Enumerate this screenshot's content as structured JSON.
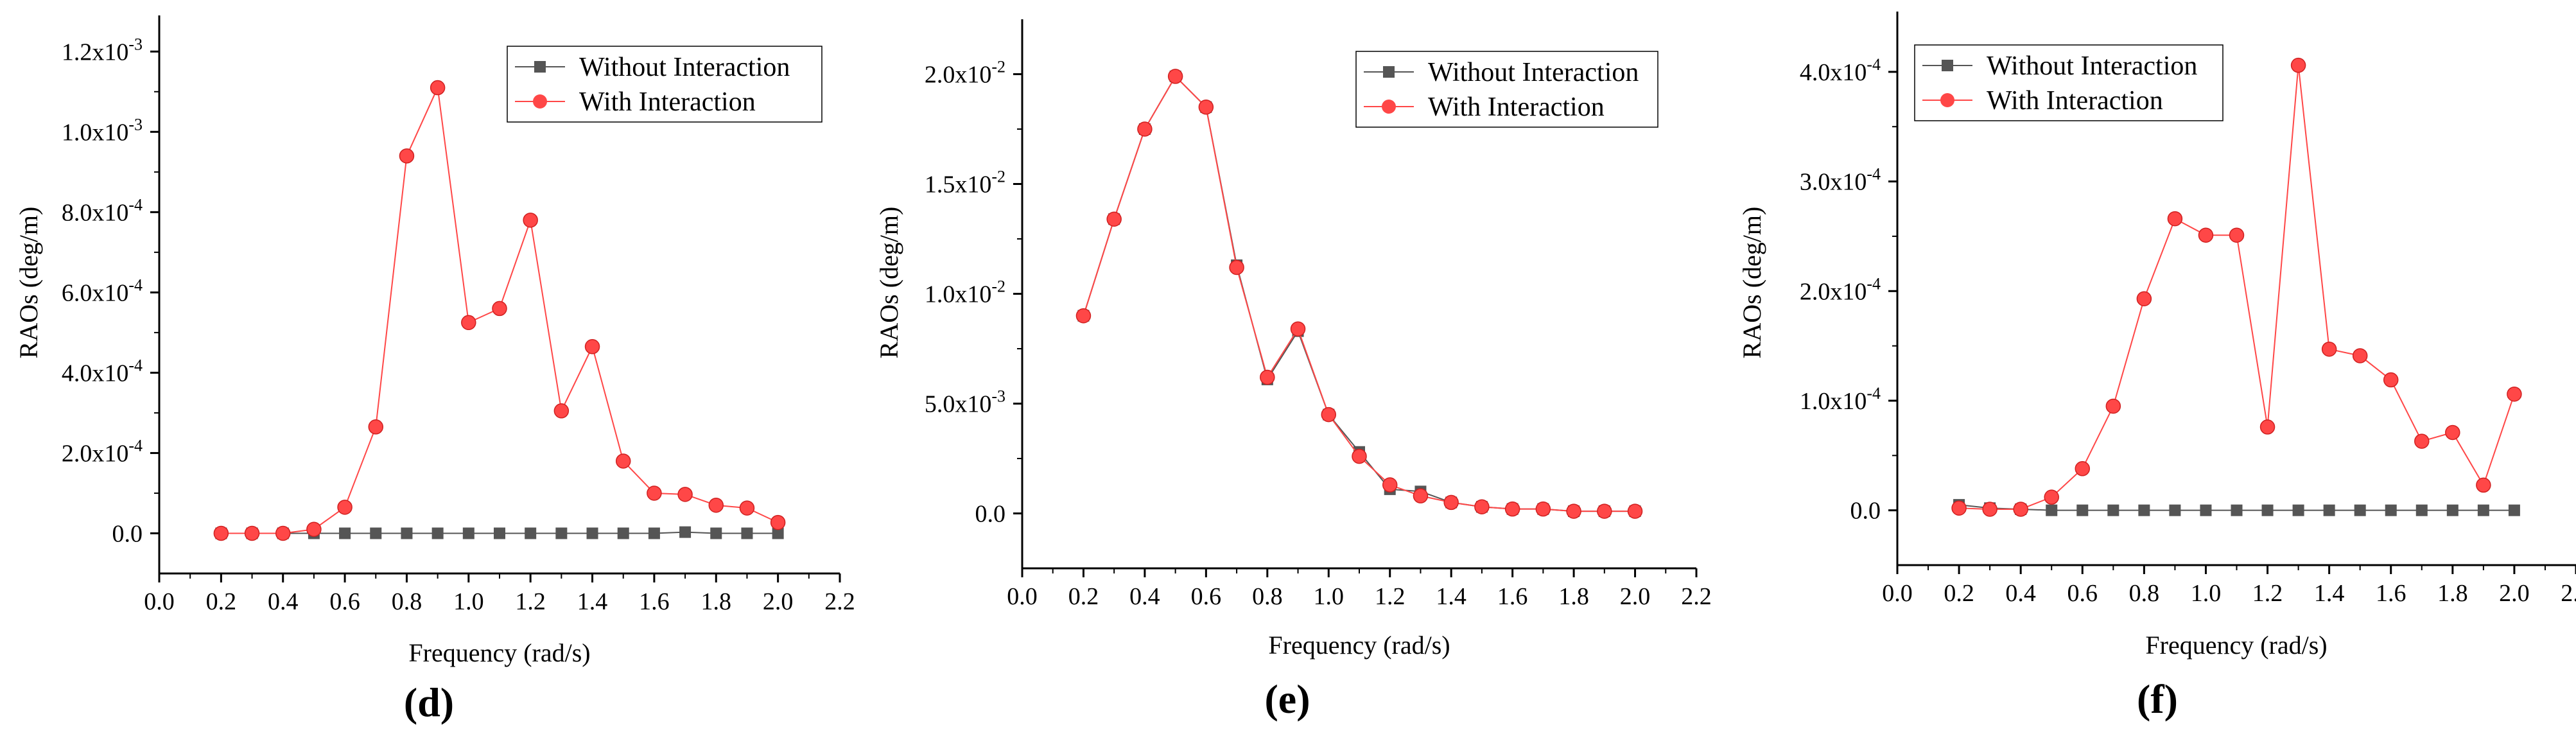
{
  "colors": {
    "without_interaction": "#555555",
    "with_interaction": "#ff4747",
    "axis": "#000000"
  },
  "chart_data": [
    {
      "type": "line",
      "panel_label": "d",
      "xlabel": "Frequency (rad/s)",
      "ylabel": "RAOs (deg/m)",
      "xlim": [
        0.0,
        2.2
      ],
      "ylim": [
        -0.0001,
        0.00129
      ],
      "x_ticks": [
        "0.0",
        "0.2",
        "0.4",
        "0.6",
        "0.8",
        "1.0",
        "1.2",
        "1.4",
        "1.6",
        "1.8",
        "2.0",
        "2.2"
      ],
      "y_ticks": [
        {
          "label": "0.0",
          "base": "",
          "exp": "",
          "value": 0
        },
        {
          "label": "",
          "base": "2.0x10",
          "exp": "-4",
          "value": 0.0002
        },
        {
          "label": "",
          "base": "4.0x10",
          "exp": "-4",
          "value": 0.0004
        },
        {
          "label": "",
          "base": "6.0x10",
          "exp": "-4",
          "value": 0.0006
        },
        {
          "label": "",
          "base": "8.0x10",
          "exp": "-4",
          "value": 0.0008
        },
        {
          "label": "",
          "base": "1.0x10",
          "exp": "-3",
          "value": 0.001
        },
        {
          "label": "",
          "base": "1.2x10",
          "exp": "-3",
          "value": 0.0012
        }
      ],
      "legend_position": "top-right",
      "x": [
        0.2,
        0.3,
        0.4,
        0.5,
        0.6,
        0.7,
        0.8,
        0.9,
        1.0,
        1.1,
        1.2,
        1.3,
        1.4,
        1.5,
        1.6,
        1.7,
        1.8,
        1.9,
        2.0
      ],
      "series": [
        {
          "name": "Without Interaction",
          "marker": "square",
          "values": [
            0,
            0,
            0,
            0,
            0,
            0,
            0,
            0,
            0,
            0,
            0,
            0,
            0,
            0,
            0,
            3e-06,
            0,
            0,
            0
          ]
        },
        {
          "name": "With Interaction",
          "marker": "circle",
          "values": [
            0,
            0,
            0,
            1e-05,
            6.5e-05,
            0.000265,
            0.00094,
            0.00111,
            0.000525,
            0.00056,
            0.00078,
            0.000305,
            0.000465,
            0.00018,
            0.0001,
            9.7e-05,
            7e-05,
            6.3e-05,
            2.7e-05
          ]
        }
      ]
    },
    {
      "type": "line",
      "panel_label": "e",
      "xlabel": "Frequency (rad/s)",
      "ylabel": "RAOs (deg/m)",
      "xlim": [
        0.0,
        2.2
      ],
      "ylim": [
        -0.0025,
        0.0225
      ],
      "x_ticks": [
        "0.0",
        "0.2",
        "0.4",
        "0.6",
        "0.8",
        "1.0",
        "1.2",
        "1.4",
        "1.6",
        "1.8",
        "2.0",
        "2.2"
      ],
      "y_ticks": [
        {
          "label": "0.0",
          "base": "",
          "exp": "",
          "value": 0
        },
        {
          "label": "",
          "base": "5.0x10",
          "exp": "-3",
          "value": 0.005
        },
        {
          "label": "",
          "base": "1.0x10",
          "exp": "-2",
          "value": 0.01
        },
        {
          "label": "",
          "base": "1.5x10",
          "exp": "-2",
          "value": 0.015
        },
        {
          "label": "",
          "base": "2.0x10",
          "exp": "-2",
          "value": 0.02
        }
      ],
      "legend_position": "top-right",
      "x": [
        0.2,
        0.3,
        0.4,
        0.5,
        0.6,
        0.7,
        0.8,
        0.9,
        1.0,
        1.1,
        1.2,
        1.3,
        1.4,
        1.5,
        1.6,
        1.7,
        1.8,
        1.9,
        2.0
      ],
      "series": [
        {
          "name": "Without Interaction",
          "marker": "square",
          "values": [
            0.009,
            0.0134,
            0.0175,
            0.0199,
            0.0185,
            0.0113,
            0.0061,
            0.0083,
            0.0045,
            0.0028,
            0.0011,
            0.001,
            0.0005,
            0.0003,
            0.0002,
            0.0002,
            0.0001,
            0.0001,
            0.0001
          ]
        },
        {
          "name": "With Interaction",
          "marker": "circle",
          "values": [
            0.009,
            0.0134,
            0.0175,
            0.0199,
            0.0185,
            0.0112,
            0.0062,
            0.0084,
            0.0045,
            0.0026,
            0.0013,
            0.0008,
            0.0005,
            0.0003,
            0.0002,
            0.0002,
            0.0001,
            0.0001,
            0.0001
          ]
        }
      ]
    },
    {
      "type": "line",
      "panel_label": "f",
      "xlabel": "Frequency (rad/s)",
      "ylabel": "RAOs (deg/m)",
      "xlim": [
        0.0,
        2.2
      ],
      "ylim": [
        -5e-05,
        0.000455
      ],
      "x_ticks": [
        "0.0",
        "0.2",
        "0.4",
        "0.6",
        "0.8",
        "1.0",
        "1.2",
        "1.4",
        "1.6",
        "1.8",
        "2.0",
        "2.2"
      ],
      "y_ticks": [
        {
          "label": "0.0",
          "base": "",
          "exp": "",
          "value": 0
        },
        {
          "label": "",
          "base": "1.0x10",
          "exp": "-4",
          "value": 0.0001
        },
        {
          "label": "",
          "base": "2.0x10",
          "exp": "-4",
          "value": 0.0002
        },
        {
          "label": "",
          "base": "3.0x10",
          "exp": "-4",
          "value": 0.0003
        },
        {
          "label": "",
          "base": "4.0x10",
          "exp": "-4",
          "value": 0.0004
        }
      ],
      "legend_position": "top-left",
      "x": [
        0.2,
        0.3,
        0.4,
        0.5,
        0.6,
        0.7,
        0.8,
        0.9,
        1.0,
        1.1,
        1.2,
        1.3,
        1.4,
        1.5,
        1.6,
        1.7,
        1.8,
        1.9,
        2.0
      ],
      "series": [
        {
          "name": "Without Interaction",
          "marker": "square",
          "values": [
            5e-06,
            2e-06,
            1e-06,
            0,
            0,
            0,
            0,
            0,
            0,
            0,
            0,
            0,
            0,
            0,
            0,
            0,
            0,
            0,
            0
          ]
        },
        {
          "name": "With Interaction",
          "marker": "circle",
          "values": [
            2e-06,
            1e-06,
            1e-06,
            1.2e-05,
            3.8e-05,
            9.5e-05,
            0.000193,
            0.000266,
            0.000251,
            0.000251,
            7.6e-05,
            0.000406,
            0.000147,
            0.000141,
            0.000119,
            6.3e-05,
            7.1e-05,
            2.3e-05,
            0.000106
          ]
        }
      ]
    }
  ]
}
